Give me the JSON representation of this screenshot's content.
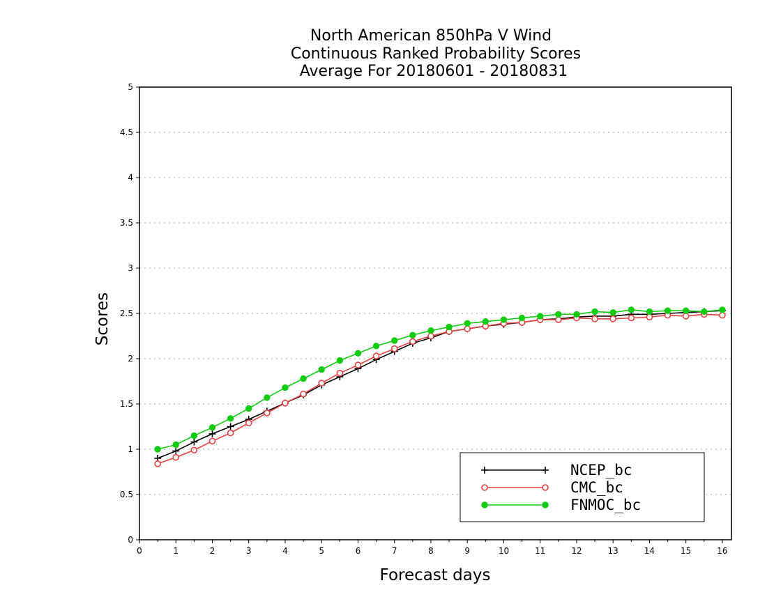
{
  "chart_data": {
    "type": "line",
    "title_lines": [
      "North American 850hPa V Wind",
      "Continuous Ranked Probability Scores",
      "Average For 20180601 - 20180831"
    ],
    "xlabel": "Forecast days",
    "ylabel": "Scores",
    "xlim": [
      0,
      16.25
    ],
    "ylim": [
      0,
      5
    ],
    "x_ticks": [
      "0",
      "1",
      "2",
      "3",
      "4",
      "5",
      "6",
      "7",
      "8",
      "9",
      "10",
      "11",
      "12",
      "13",
      "14",
      "15",
      "16"
    ],
    "y_ticks": [
      "0",
      "0.5",
      "1",
      "1.5",
      "2",
      "2.5",
      "3",
      "3.5",
      "4",
      "4.5",
      "5"
    ],
    "grid": "horizontal dotted",
    "legend_position": "bottom-right",
    "x": [
      0.5,
      1,
      1.5,
      2,
      2.5,
      3,
      3.5,
      4,
      4.5,
      5,
      5.5,
      6,
      6.5,
      7,
      7.5,
      8,
      8.5,
      9,
      9.5,
      10,
      10.5,
      11,
      11.5,
      12,
      12.5,
      13,
      13.5,
      14,
      14.5,
      15,
      15.5,
      16
    ],
    "series": [
      {
        "name": "NCEP_bc",
        "color": "#000000",
        "marker": "plus",
        "values": [
          0.9,
          0.98,
          1.08,
          1.17,
          1.25,
          1.33,
          1.42,
          1.51,
          1.6,
          1.71,
          1.8,
          1.89,
          1.99,
          2.08,
          2.17,
          2.23,
          2.3,
          2.33,
          2.36,
          2.38,
          2.4,
          2.43,
          2.44,
          2.46,
          2.47,
          2.47,
          2.49,
          2.49,
          2.5,
          2.51,
          2.52,
          2.53
        ]
      },
      {
        "name": "CMC_bc",
        "color": "#e84040",
        "marker": "open-circle",
        "values": [
          0.84,
          0.91,
          0.99,
          1.09,
          1.18,
          1.29,
          1.4,
          1.51,
          1.61,
          1.73,
          1.84,
          1.93,
          2.03,
          2.11,
          2.19,
          2.25,
          2.3,
          2.33,
          2.36,
          2.39,
          2.4,
          2.43,
          2.43,
          2.45,
          2.44,
          2.44,
          2.45,
          2.46,
          2.48,
          2.47,
          2.49,
          2.48
        ]
      },
      {
        "name": "FNMOC_bc",
        "color": "#11cc11",
        "marker": "filled-circle",
        "values": [
          1.0,
          1.05,
          1.15,
          1.24,
          1.34,
          1.45,
          1.57,
          1.68,
          1.78,
          1.88,
          1.98,
          2.06,
          2.14,
          2.2,
          2.26,
          2.31,
          2.35,
          2.39,
          2.41,
          2.43,
          2.45,
          2.47,
          2.49,
          2.49,
          2.52,
          2.51,
          2.54,
          2.52,
          2.53,
          2.53,
          2.52,
          2.54
        ]
      }
    ]
  }
}
